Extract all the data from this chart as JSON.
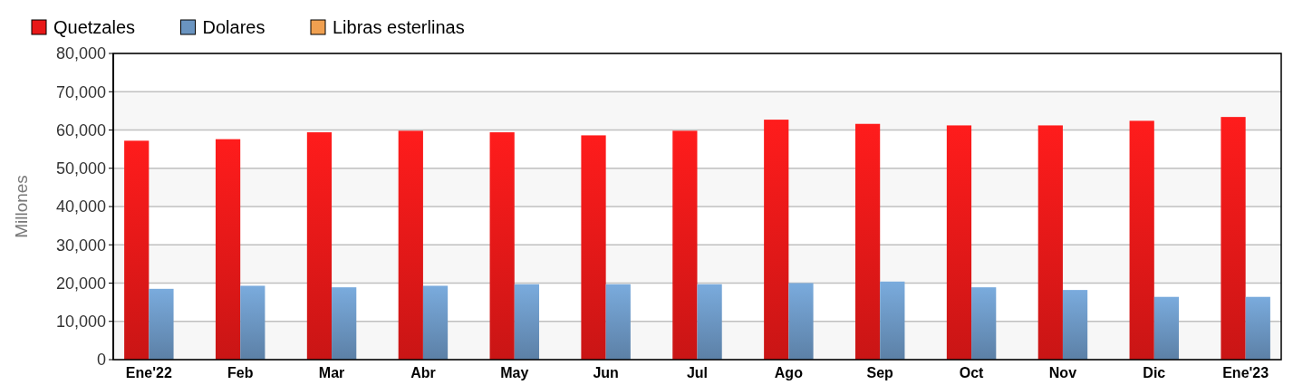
{
  "chart_data": {
    "type": "bar",
    "ylabel": "Millones",
    "categories": [
      "Ene'22",
      "Feb",
      "Mar",
      "Abr",
      "May",
      "Jun",
      "Jul",
      "Ago",
      "Sep",
      "Oct",
      "Nov",
      "Dic",
      "Ene'23"
    ],
    "series": [
      {
        "name": "Quetzales",
        "color": "#e81818",
        "values": [
          57200,
          57600,
          59400,
          59800,
          59400,
          58600,
          59800,
          62700,
          61600,
          61200,
          61200,
          62400,
          63400
        ]
      },
      {
        "name": "Dolares",
        "color": "#6a94c0",
        "values": [
          18500,
          19300,
          18900,
          19300,
          19700,
          19700,
          19700,
          20000,
          20400,
          18900,
          18200,
          16400,
          16400
        ]
      },
      {
        "name": "Libras esterlinas",
        "color": "#f0a050",
        "values": [
          0,
          0,
          0,
          0,
          0,
          0,
          0,
          0,
          0,
          0,
          0,
          0,
          0
        ]
      }
    ],
    "ylim": [
      0,
      80000
    ],
    "yticks": [
      {
        "value": 0,
        "label": "0"
      },
      {
        "value": 10000,
        "label": "10,000"
      },
      {
        "value": 20000,
        "label": "20,000"
      },
      {
        "value": 30000,
        "label": "30,000"
      },
      {
        "value": 40000,
        "label": "40,000"
      },
      {
        "value": 50000,
        "label": "50,000"
      },
      {
        "value": 60000,
        "label": "60,000"
      },
      {
        "value": 70000,
        "label": "70,000"
      },
      {
        "value": 80000,
        "label": "80,000"
      }
    ],
    "grid": "y",
    "legend": "top left"
  }
}
